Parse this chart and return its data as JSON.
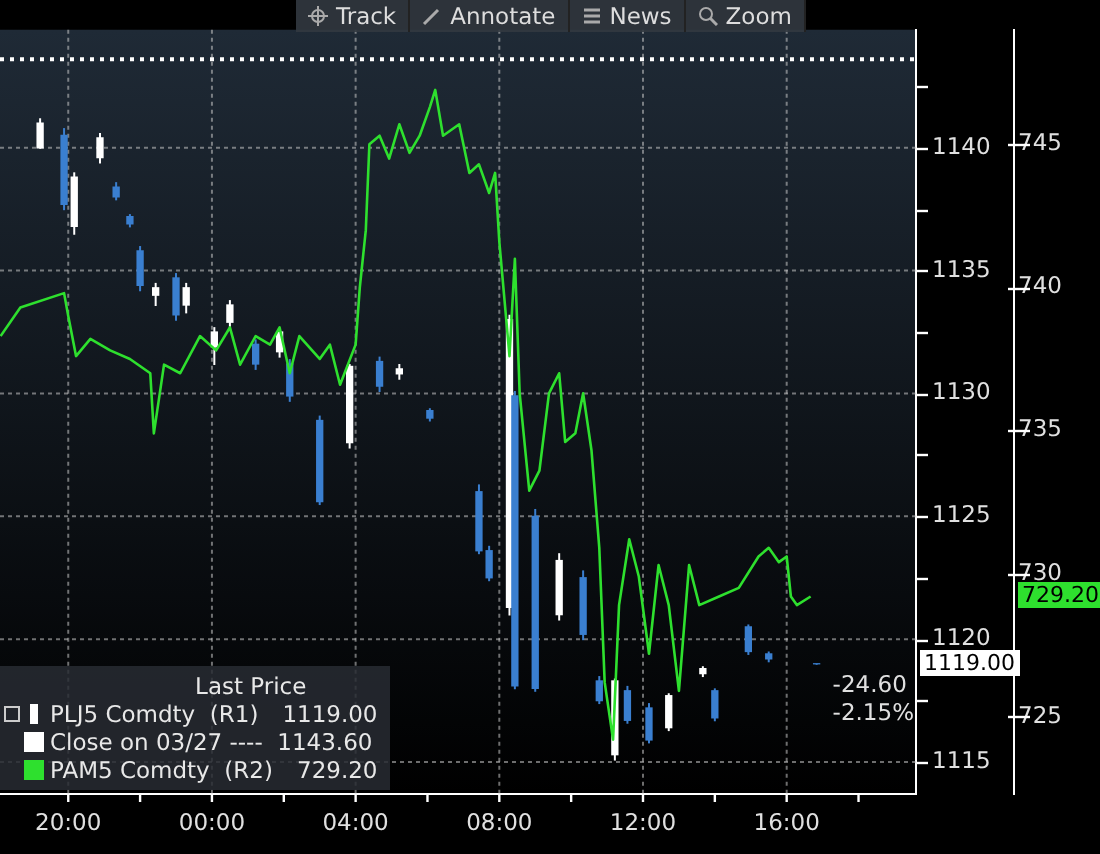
{
  "chart_data": {
    "type": "candlestick",
    "legend_title": "Last Price",
    "legend": "bottom left",
    "grid": true,
    "xlim": [
      "--03-27T18:06",
      "--03-28T19:36"
    ],
    "xticks": [
      {
        "value": "--03-27T20:00",
        "label": "20:00"
      },
      {
        "value": "--03-27T22:00",
        "label": null
      },
      {
        "value": "--03-28T00:00",
        "label": "00:00"
      },
      {
        "value": "--03-28T02:00",
        "label": null
      },
      {
        "value": "--03-28T04:00",
        "label": "04:00"
      },
      {
        "value": "--03-28T06:00",
        "label": null
      },
      {
        "value": "--03-28T08:00",
        "label": "08:00"
      },
      {
        "value": "--03-28T10:00",
        "label": null
      },
      {
        "value": "--03-28T12:00",
        "label": "12:00"
      },
      {
        "value": "--03-28T14:00",
        "label": null
      },
      {
        "value": "--03-28T16:00",
        "label": "16:00"
      },
      {
        "value": "--03-28T18:00",
        "label": null
      }
    ],
    "ylim": [
      1113.7,
      1144.8
    ],
    "yticks": [
      1115,
      {
        "value": 1117.5,
        "label": null
      },
      1120,
      {
        "value": 1122.5,
        "label": null
      },
      1125,
      {
        "value": 1127.5,
        "label": null
      },
      1130,
      {
        "value": 1132.5,
        "label": null
      },
      1135,
      {
        "value": 1137.5,
        "label": null
      },
      1140,
      {
        "value": 1142.5,
        "label": null
      }
    ],
    "y2lim": [
      722.3,
      749
    ],
    "y2ticks": [
      725,
      730,
      735,
      740,
      745
    ],
    "series": [
      {
        "name": "PLJ5 Comdty  (R1)",
        "color": "#ffffff",
        "x": [
          "--03-27T19:13",
          "--03-27T19:53",
          "--03-27T20:10",
          "--03-27T20:53",
          "--03-27T21:20",
          "--03-27T21:43",
          "--03-27T22:00",
          "--03-27T22:26",
          "--03-27T23:00",
          "--03-27T23:17",
          "--03-28T00:04",
          "--03-28T00:30",
          "--03-28T01:13",
          "--03-28T01:53",
          "--03-28T02:10",
          "--03-28T03:00",
          "--03-28T03:50",
          "--03-28T04:40",
          "--03-28T05:13",
          "--03-28T06:04",
          "--03-28T07:26",
          "--03-28T07:43",
          "--03-28T08:17",
          "--03-28T08:26",
          "--03-28T09:00",
          "--03-28T09:40",
          "--03-28T10:20",
          "--03-28T10:47",
          "--03-28T11:13",
          "--03-28T11:34",
          "--03-28T12:10",
          "--03-28T12:43",
          "--03-28T13:40",
          "--03-28T14:00",
          "--03-28T14:56",
          "--03-28T15:30",
          "--03-28T16:50"
        ],
        "ohlc": [
          [
            1140.0,
            1141.2,
            1140.0,
            1141.0
          ],
          [
            1140.5,
            1140.8,
            1137.5,
            1137.7
          ],
          [
            1136.8,
            1139.0,
            1136.5,
            1138.8
          ],
          [
            1139.6,
            1140.6,
            1139.4,
            1140.4
          ],
          [
            1138.4,
            1138.6,
            1137.9,
            1138.0
          ],
          [
            1137.2,
            1137.3,
            1136.8,
            1136.9
          ],
          [
            1135.8,
            1136.0,
            1134.2,
            1134.4
          ],
          [
            1134.0,
            1134.5,
            1133.6,
            1134.3
          ],
          [
            1134.7,
            1134.9,
            1133.0,
            1133.2
          ],
          [
            1133.6,
            1134.5,
            1133.3,
            1134.3
          ],
          [
            1131.9,
            1132.7,
            1131.2,
            1132.5
          ],
          [
            1132.9,
            1133.8,
            1132.7,
            1133.6
          ],
          [
            1132.0,
            1132.2,
            1131.0,
            1131.2
          ],
          [
            1131.7,
            1132.6,
            1131.5,
            1132.5
          ],
          [
            1131.2,
            1131.4,
            1129.7,
            1129.9
          ],
          [
            1128.9,
            1129.1,
            1125.5,
            1125.6
          ],
          [
            1128.0,
            1131.2,
            1127.8,
            1131.1
          ],
          [
            1131.3,
            1131.5,
            1130.1,
            1130.3
          ],
          [
            1130.8,
            1131.2,
            1130.6,
            1131.0
          ],
          [
            1129.3,
            1129.4,
            1128.9,
            1129.0
          ],
          [
            1126.0,
            1126.3,
            1123.5,
            1123.6
          ],
          [
            1123.6,
            1123.8,
            1122.4,
            1122.5
          ],
          [
            1121.3,
            1133.2,
            1121.0,
            1133.0
          ],
          [
            1129.9,
            1130.1,
            1118.0,
            1118.1
          ],
          [
            1125.0,
            1125.3,
            1117.9,
            1118.0
          ],
          [
            1121.0,
            1123.5,
            1120.8,
            1123.2
          ],
          [
            1122.5,
            1122.8,
            1120.0,
            1120.2
          ],
          [
            1118.3,
            1118.5,
            1117.4,
            1117.5
          ],
          [
            1115.3,
            1118.4,
            1115.1,
            1118.3
          ],
          [
            1117.9,
            1118.1,
            1116.6,
            1116.7
          ],
          [
            1117.2,
            1117.4,
            1115.8,
            1115.9
          ],
          [
            1116.4,
            1117.8,
            1116.3,
            1117.7
          ],
          [
            1118.6,
            1118.9,
            1118.5,
            1118.8
          ],
          [
            1117.9,
            1118.0,
            1116.7,
            1116.8
          ],
          [
            1120.5,
            1120.6,
            1119.4,
            1119.5
          ],
          [
            1119.4,
            1119.5,
            1119.1,
            1119.2
          ],
          [
            1119.0,
            1119.0,
            1119.0,
            1119.0
          ]
        ],
        "colors": [
          "#ffffff",
          "#3a7fd0",
          "#ffffff",
          "#ffffff",
          "#3a7fd0",
          "#3a7fd0",
          "#3a7fd0",
          "#ffffff",
          "#3a7fd0",
          "#ffffff",
          "#ffffff",
          "#ffffff",
          "#3a7fd0",
          "#ffffff",
          "#3a7fd0",
          "#3a7fd0",
          "#ffffff",
          "#3a7fd0",
          "#ffffff",
          "#3a7fd0",
          "#3a7fd0",
          "#3a7fd0",
          "#ffffff",
          "#3a7fd0",
          "#3a7fd0",
          "#ffffff",
          "#3a7fd0",
          "#3a7fd0",
          "#ffffff",
          "#3a7fd0",
          "#3a7fd0",
          "#ffffff",
          "#ffffff",
          "#3a7fd0",
          "#3a7fd0",
          "#3a7fd0",
          "#3a7fd0"
        ],
        "value_labels": [
          null,
          null,
          null,
          null,
          null,
          null,
          null,
          null,
          null,
          null,
          null,
          null,
          null,
          null,
          null,
          null,
          null,
          null,
          null,
          null,
          null,
          null,
          null,
          null,
          null,
          null,
          null,
          null,
          null,
          null,
          null,
          null,
          null,
          null,
          null,
          null,
          "1119.00"
        ]
      },
      {
        "type": "line",
        "name": "PAM5 Comdty  (R2)",
        "color": "#2ee02e",
        "axis": "y2",
        "marker": "none",
        "x": [
          "--03-27T18:07",
          "--03-27T18:40",
          "--03-27T19:53",
          "--03-27T20:00",
          "--03-27T20:13",
          "--03-27T20:37",
          "--03-27T21:10",
          "--03-27T21:43",
          "--03-27T22:17",
          "--03-27T22:23",
          "--03-27T22:40",
          "--03-27T23:07",
          "--03-27T23:40",
          "--03-28T00:07",
          "--03-28T00:30",
          "--03-28T00:47",
          "--03-28T01:13",
          "--03-28T01:37",
          "--03-28T01:53",
          "--03-28T02:10",
          "--03-28T02:26",
          "--03-28T03:00",
          "--03-28T03:17",
          "--03-28T03:34",
          "--03-28T04:00",
          "--03-28T04:07",
          "--03-28T04:17",
          "--03-28T04:23",
          "--03-28T04:40",
          "--03-28T04:56",
          "--03-28T05:13",
          "--03-28T05:30",
          "--03-28T05:47",
          "--03-28T06:04",
          "--03-28T06:13",
          "--03-28T06:26",
          "--03-28T06:53",
          "--03-28T07:10",
          "--03-28T07:26",
          "--03-28T07:43",
          "--03-28T07:53",
          "--03-28T08:00",
          "--03-28T08:17",
          "--03-28T08:26",
          "--03-28T08:34",
          "--03-28T08:50",
          "--03-28T09:07",
          "--03-28T09:23",
          "--03-28T09:40",
          "--03-28T09:50",
          "--03-28T10:07",
          "--03-28T10:20",
          "--03-28T10:34",
          "--03-28T10:47",
          "--03-28T10:56",
          "--03-28T11:10",
          "--03-28T11:20",
          "--03-28T11:37",
          "--03-28T11:53",
          "--03-28T12:10",
          "--03-28T12:26",
          "--03-28T12:43",
          "--03-28T13:00",
          "--03-28T13:17",
          "--03-28T13:34",
          "--03-28T14:07",
          "--03-28T14:40",
          "--03-28T15:13",
          "--03-28T15:30",
          "--03-28T15:47",
          "--03-28T16:00",
          "--03-28T16:07",
          "--03-28T16:17",
          "--03-28T16:40"
        ],
        "values": [
          738.3,
          739.3,
          739.8,
          739.0,
          737.6,
          738.2,
          737.8,
          737.5,
          737.0,
          734.9,
          737.3,
          737.0,
          738.3,
          737.8,
          738.6,
          737.3,
          738.3,
          738.0,
          738.6,
          737.0,
          738.3,
          737.5,
          738.0,
          736.6,
          738.0,
          740.0,
          742.0,
          745.0,
          745.3,
          744.5,
          745.7,
          744.7,
          745.3,
          746.3,
          746.9,
          745.3,
          745.7,
          744.0,
          744.3,
          743.3,
          744.0,
          741.6,
          737.6,
          741.0,
          736.3,
          732.9,
          733.6,
          736.3,
          737.0,
          734.6,
          734.9,
          736.3,
          734.3,
          730.9,
          726.2,
          724.2,
          728.9,
          731.2,
          729.9,
          727.2,
          730.3,
          728.9,
          725.9,
          730.3,
          728.9,
          729.2,
          729.5,
          730.6,
          730.9,
          730.4,
          730.6,
          729.2,
          728.9,
          729.2
        ],
        "value_labels": [
          null,
          null,
          null,
          null,
          null,
          null,
          null,
          null,
          null,
          null,
          null,
          null,
          null,
          null,
          null,
          null,
          null,
          null,
          null,
          null,
          null,
          null,
          null,
          null,
          null,
          null,
          null,
          null,
          null,
          null,
          null,
          null,
          null,
          null,
          null,
          null,
          null,
          null,
          null,
          null,
          null,
          null,
          null,
          null,
          null,
          null,
          null,
          null,
          null,
          null,
          null,
          null,
          null,
          null,
          null,
          null,
          null,
          null,
          null,
          null,
          null,
          null,
          null,
          null,
          null,
          null,
          null,
          null,
          null,
          null,
          null,
          null,
          null,
          null
        ]
      }
    ],
    "ref_lines": [
      {
        "axis": "y",
        "value": 1143.6,
        "label": "Close on 03/27 ----  1143.60",
        "color": "#ffffff",
        "line_style": "dotted"
      }
    ],
    "annotations": [
      {
        "text": "-24.60",
        "x": "--03-28T16:50",
        "y": 1119.0
      },
      {
        "text": "-2.15%",
        "x": "--03-28T16:50",
        "y": 1119.0
      },
      "729.20",
      "Track",
      "Annotate",
      "News",
      "Zoom"
    ]
  }
}
